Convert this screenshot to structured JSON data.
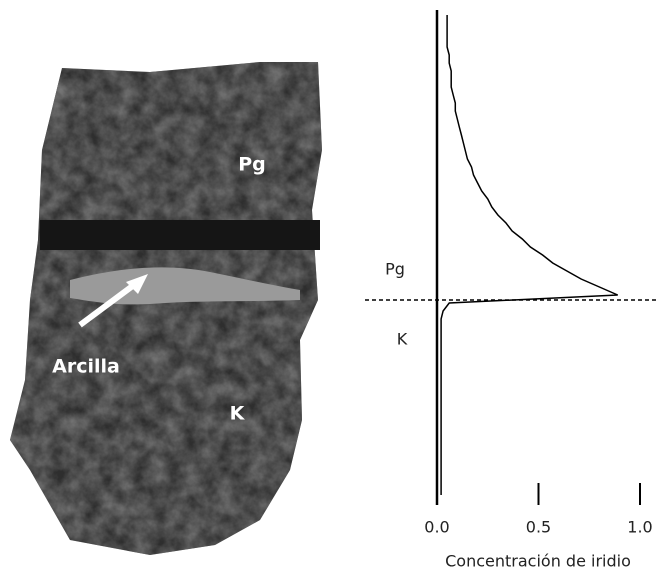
{
  "photo": {
    "labels": {
      "upper": "Pg",
      "clay": "Arcilla",
      "lower": "K"
    }
  },
  "chart_data": {
    "type": "line",
    "orientation": "horizontal",
    "x_label": "Concentración de iridio",
    "upper_label": "Pg",
    "lower_label": "K",
    "xlim": [
      0,
      1.0
    ],
    "xticks": [
      {
        "value": 0,
        "label": "0.0"
      },
      {
        "value": 0.5,
        "label": "0.5"
      },
      {
        "value": 1.0,
        "label": "1.0"
      }
    ],
    "color": "#000000",
    "boundary_index": 35,
    "categories": [
      null,
      null,
      null,
      null,
      null,
      null,
      null,
      null,
      null,
      null,
      null,
      null,
      null,
      null,
      null,
      null,
      null,
      null,
      null,
      null,
      null,
      null,
      null,
      null,
      null,
      null,
      null,
      null,
      null,
      null,
      null,
      null,
      null,
      null,
      null,
      null,
      null,
      null,
      null,
      null,
      null,
      null,
      null,
      null,
      null,
      null,
      null,
      null,
      null,
      null,
      null,
      null,
      null,
      null,
      null,
      null,
      null,
      null,
      null,
      null,
      null
    ],
    "values": [
      0.05,
      0.05,
      0.05,
      0.05,
      0.05,
      0.06,
      0.06,
      0.07,
      0.07,
      0.07,
      0.08,
      0.09,
      0.09,
      0.1,
      0.11,
      0.12,
      0.13,
      0.14,
      0.15,
      0.17,
      0.18,
      0.2,
      0.22,
      0.25,
      0.27,
      0.3,
      0.34,
      0.37,
      0.42,
      0.46,
      0.52,
      0.57,
      0.64,
      0.71,
      0.8,
      0.89,
      0.06,
      0.03,
      0.02,
      0.02,
      0.02,
      0.02,
      0.02,
      0.02,
      0.02,
      0.02,
      0.02,
      0.02,
      0.02,
      0.02,
      0.02,
      0.02,
      0.02,
      0.02,
      0.02,
      0.02,
      0.02,
      0.02,
      0.02,
      0.02,
      0.02
    ]
  }
}
